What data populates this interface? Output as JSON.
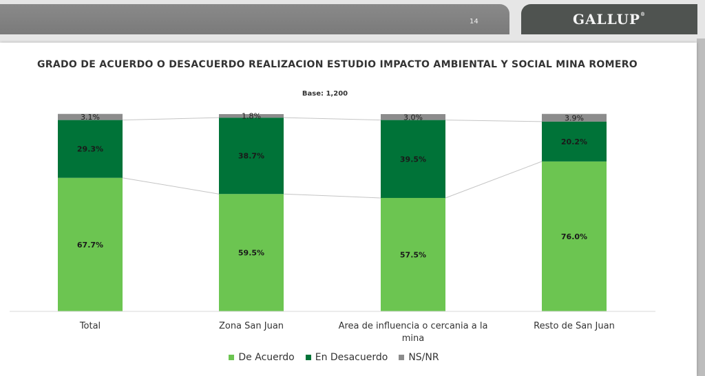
{
  "header": {
    "page_number": "14",
    "brand": "GALLUP",
    "brand_mark": "®"
  },
  "chart_data": {
    "type": "bar",
    "stacked": true,
    "normalized": true,
    "title": "GRADO DE ACUERDO O DESACUERDO REALIZACION ESTUDIO IMPACTO AMBIENTAL Y SOCIAL MINA ROMERO",
    "subtitle": "Base: 1,200",
    "categories": [
      "Total",
      "Zona San Juan",
      "Area de influencia o cercania a la mina",
      "Resto de San Juan"
    ],
    "series": [
      {
        "name": "De Acuerdo",
        "color": "#6cc551",
        "values": [
          67.7,
          59.5,
          57.5,
          76.0
        ],
        "labels": [
          "67.7%",
          "59.5%",
          "57.5%",
          "76.0%"
        ]
      },
      {
        "name": "En Desacuerdo",
        "color": "#007338",
        "values": [
          29.3,
          38.7,
          39.5,
          20.2
        ],
        "labels": [
          "29.3%",
          "38.7%",
          "39.5%",
          "20.2%"
        ]
      },
      {
        "name": "NS/NR",
        "color": "#8c8c8c",
        "values": [
          3.1,
          1.8,
          3.0,
          3.9
        ],
        "labels": [
          "3.1%",
          "1.8%",
          "3.0%",
          "3.9%"
        ]
      }
    ],
    "ylim": [
      0,
      100
    ],
    "legend_position": "bottom",
    "grid": false,
    "series_connector_lines": true
  }
}
